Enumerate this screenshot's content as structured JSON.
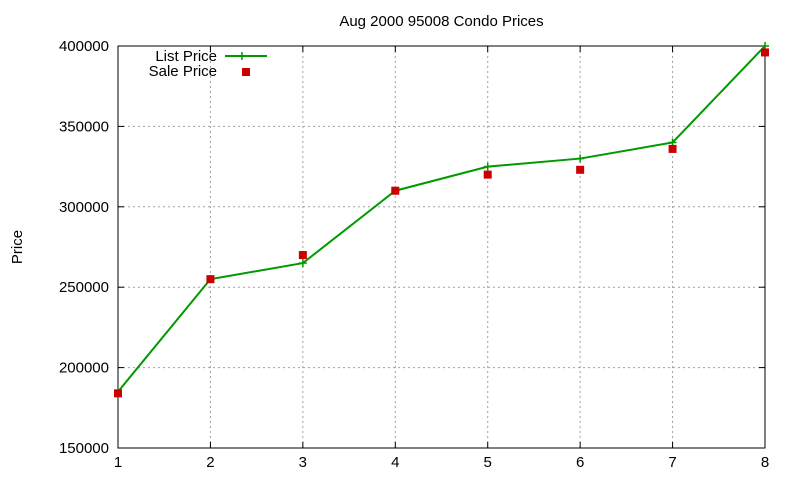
{
  "chart_data": {
    "type": "line",
    "title": "Aug 2000 95008 Condo Prices",
    "xlabel": "",
    "ylabel": "Price",
    "x": [
      1,
      2,
      3,
      4,
      5,
      6,
      7,
      8
    ],
    "xlim": [
      1,
      8
    ],
    "ylim": [
      150000,
      400000
    ],
    "x_ticks": [
      "1",
      "2",
      "3",
      "4",
      "5",
      "6",
      "7",
      "8"
    ],
    "y_ticks": [
      "150000",
      "200000",
      "250000",
      "300000",
      "350000",
      "400000"
    ],
    "grid": true,
    "legend_position": "top-left",
    "series": [
      {
        "name": "List Price",
        "style": "line with plus markers",
        "color": "#009900",
        "values": [
          185000,
          255000,
          265000,
          310000,
          325000,
          330000,
          340000,
          400000
        ]
      },
      {
        "name": "Sale Price",
        "style": "square points",
        "color": "#cc0000",
        "values": [
          184000,
          255000,
          270000,
          310000,
          320000,
          323000,
          336000,
          396000
        ]
      }
    ]
  }
}
